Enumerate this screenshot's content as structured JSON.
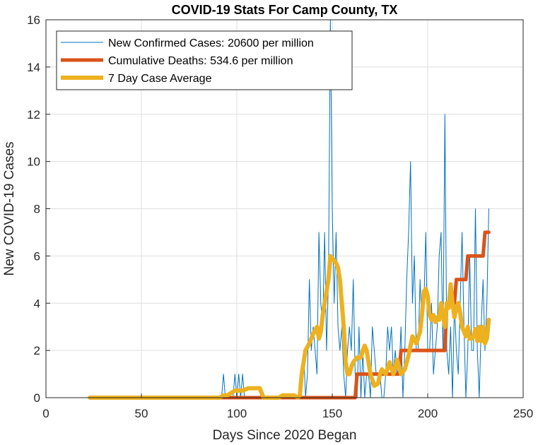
{
  "chart_data": {
    "type": "line",
    "title": "COVID-19 Stats For Camp County, TX",
    "xlabel": "Days Since 2020 Began",
    "ylabel": "New COVID-19 Cases",
    "xlim": [
      0,
      250
    ],
    "ylim": [
      0,
      16
    ],
    "xticks": [
      0,
      50,
      100,
      150,
      200,
      250
    ],
    "yticks": [
      0,
      2,
      4,
      6,
      8,
      10,
      12,
      14,
      16
    ],
    "grid": true,
    "legend_position": "top-left",
    "series": [
      {
        "name": "New Confirmed Cases: 20600 per million",
        "color": "#0072BD",
        "x": [
          23,
          40,
          60,
          80,
          90,
          92,
          93,
          94,
          95,
          96,
          97,
          98,
          99,
          100,
          101,
          102,
          103,
          104,
          105,
          106,
          107,
          108,
          109,
          110,
          111,
          112,
          113,
          114,
          115,
          116,
          117,
          118,
          119,
          120,
          121,
          122,
          123,
          124,
          125,
          126,
          127,
          128,
          129,
          130,
          131,
          132,
          133,
          134,
          135,
          136,
          137,
          138,
          139,
          140,
          141,
          142,
          143,
          144,
          145,
          146,
          147,
          148,
          149,
          150,
          151,
          152,
          153,
          154,
          155,
          156,
          157,
          158,
          159,
          160,
          161,
          162,
          163,
          164,
          165,
          166,
          167,
          168,
          169,
          170,
          171,
          172,
          173,
          174,
          175,
          176,
          177,
          178,
          179,
          180,
          181,
          182,
          183,
          184,
          185,
          186,
          187,
          188,
          189,
          190,
          191,
          192,
          193,
          194,
          195,
          196,
          197,
          198,
          199,
          200,
          201,
          202,
          203,
          204,
          205,
          206,
          207,
          208,
          209,
          210,
          211,
          212,
          213,
          214,
          215,
          216,
          217,
          218,
          219,
          220,
          221,
          222,
          223,
          224,
          225,
          226,
          227,
          228,
          229,
          230,
          231,
          232
        ],
        "y": [
          0,
          0,
          0,
          0,
          0,
          0,
          1,
          0,
          0,
          0,
          0,
          0,
          1,
          0,
          1,
          0,
          1,
          0,
          0,
          0,
          0,
          0,
          0,
          0,
          0,
          0,
          0,
          0,
          0,
          0,
          0,
          0,
          0,
          0,
          0,
          0,
          0,
          0,
          0,
          0,
          0,
          0,
          0,
          0,
          0,
          0,
          0,
          1,
          2,
          0,
          1,
          5,
          2,
          3,
          2,
          1,
          7,
          4,
          3,
          7,
          2,
          5,
          16,
          8,
          4,
          7,
          3,
          2,
          3,
          1,
          0,
          2,
          3,
          2,
          5,
          1,
          0,
          3,
          0,
          2,
          0,
          1,
          1,
          0,
          3,
          2,
          1,
          1,
          1,
          0,
          0,
          1,
          3,
          2,
          3,
          1,
          2,
          1,
          1,
          3,
          0,
          2,
          5,
          7,
          10,
          4,
          6,
          2,
          2,
          5,
          3,
          4,
          7,
          2,
          2,
          4,
          1,
          2,
          3,
          6,
          7,
          2,
          12,
          2,
          1,
          3,
          0,
          4,
          2,
          1,
          4,
          7,
          3,
          0,
          2,
          6,
          2,
          2,
          8,
          2,
          0,
          3,
          5,
          2,
          4,
          8
        ],
        "line_width": "thin"
      },
      {
        "name": "Cumulative Deaths: 534.6 per million",
        "color": "#D95319",
        "x": [
          23,
          162,
          163,
          185,
          186,
          209,
          210,
          214,
          215,
          220,
          221,
          229,
          230,
          232
        ],
        "y": [
          0,
          0,
          1,
          1,
          2,
          2,
          4,
          4,
          5,
          5,
          6,
          6,
          7,
          7
        ],
        "line_width": "thick"
      },
      {
        "name": "7 Day Case Average",
        "color": "#EDB120",
        "x": [
          23,
          91,
          93,
          95,
          99,
          103,
          106,
          108,
          110,
          112,
          114,
          118,
          122,
          124,
          126,
          128,
          130,
          132,
          133,
          134,
          135,
          136,
          138,
          140,
          142,
          143,
          144,
          145,
          146,
          147,
          148,
          149,
          150,
          151,
          152,
          153,
          154,
          155,
          156,
          157,
          158,
          159,
          160,
          161,
          162,
          163,
          165,
          166,
          167,
          168,
          169,
          170,
          172,
          174,
          175,
          176,
          178,
          180,
          182,
          184,
          186,
          188,
          190,
          192,
          194,
          196,
          197,
          198,
          199,
          200,
          201,
          202,
          203,
          204,
          205,
          206,
          207,
          208,
          209,
          210,
          211,
          212,
          213,
          214,
          215,
          216,
          217,
          218,
          219,
          220,
          221,
          222,
          223,
          224,
          225,
          226,
          227,
          228,
          229,
          230,
          231,
          232
        ],
        "y": [
          0,
          0,
          0.1,
          0.1,
          0.3,
          0.3,
          0.4,
          0.4,
          0.4,
          0.4,
          0,
          0,
          0,
          0.1,
          0.1,
          0.1,
          0.1,
          0,
          0.1,
          1,
          1.5,
          2,
          2.3,
          2.7,
          3,
          2.5,
          2.8,
          3.5,
          4,
          4.5,
          5,
          6,
          5.9,
          5.8,
          5.7,
          5.5,
          5,
          4,
          3,
          1.5,
          1,
          1,
          1.3,
          1.5,
          1.6,
          1.7,
          1.7,
          2,
          2.2,
          2,
          1.5,
          1,
          0.5,
          0.6,
          1,
          1.2,
          1,
          1.5,
          1,
          1.6,
          1,
          1.2,
          1.8,
          2.6,
          2.3,
          2.8,
          3.5,
          4.5,
          4.6,
          4.3,
          3.5,
          3.3,
          3.5,
          3.2,
          3.4,
          3.3,
          4,
          3.5,
          3,
          4,
          3.8,
          4.8,
          4,
          3.4,
          3.8,
          4,
          3.6,
          3,
          2.8,
          2.6,
          3,
          2.5,
          2.5,
          2.6,
          2.9,
          2.4,
          3,
          2.4,
          3,
          2.3,
          2.5,
          3.3
        ],
        "line_width": "thicker"
      }
    ]
  }
}
